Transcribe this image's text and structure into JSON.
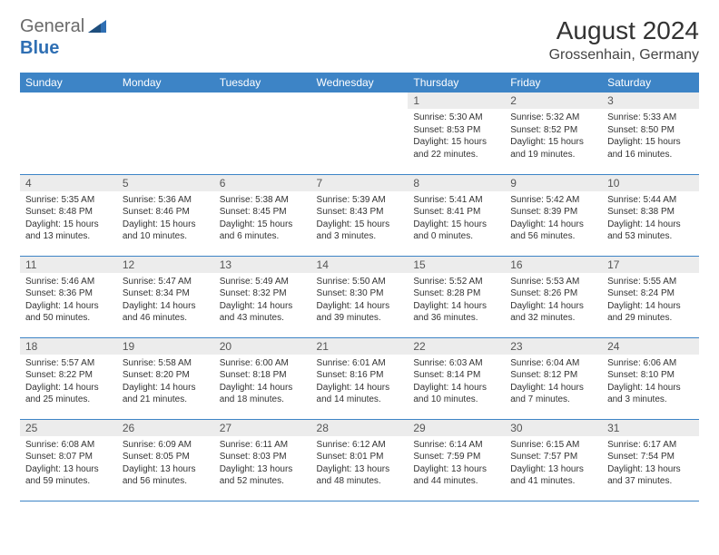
{
  "logo": {
    "general": "General",
    "blue": "Blue",
    "triangle_color": "#2f6fb3"
  },
  "title": "August 2024",
  "subtitle": "Grossenhain, Germany",
  "columns": [
    "Sunday",
    "Monday",
    "Tuesday",
    "Wednesday",
    "Thursday",
    "Friday",
    "Saturday"
  ],
  "colors": {
    "header_bg": "#3d84c6",
    "header_text": "#ffffff",
    "daynum_bg": "#ececec",
    "border": "#3d84c6",
    "text": "#333333"
  },
  "typography": {
    "title_fontsize": 28,
    "subtitle_fontsize": 16,
    "header_fontsize": 12,
    "daynum_fontsize": 12,
    "body_fontsize": 10
  },
  "weeks": [
    [
      null,
      null,
      null,
      null,
      {
        "n": "1",
        "sr": "Sunrise: 5:30 AM",
        "ss": "Sunset: 8:53 PM",
        "d1": "Daylight: 15 hours",
        "d2": "and 22 minutes."
      },
      {
        "n": "2",
        "sr": "Sunrise: 5:32 AM",
        "ss": "Sunset: 8:52 PM",
        "d1": "Daylight: 15 hours",
        "d2": "and 19 minutes."
      },
      {
        "n": "3",
        "sr": "Sunrise: 5:33 AM",
        "ss": "Sunset: 8:50 PM",
        "d1": "Daylight: 15 hours",
        "d2": "and 16 minutes."
      }
    ],
    [
      {
        "n": "4",
        "sr": "Sunrise: 5:35 AM",
        "ss": "Sunset: 8:48 PM",
        "d1": "Daylight: 15 hours",
        "d2": "and 13 minutes."
      },
      {
        "n": "5",
        "sr": "Sunrise: 5:36 AM",
        "ss": "Sunset: 8:46 PM",
        "d1": "Daylight: 15 hours",
        "d2": "and 10 minutes."
      },
      {
        "n": "6",
        "sr": "Sunrise: 5:38 AM",
        "ss": "Sunset: 8:45 PM",
        "d1": "Daylight: 15 hours",
        "d2": "and 6 minutes."
      },
      {
        "n": "7",
        "sr": "Sunrise: 5:39 AM",
        "ss": "Sunset: 8:43 PM",
        "d1": "Daylight: 15 hours",
        "d2": "and 3 minutes."
      },
      {
        "n": "8",
        "sr": "Sunrise: 5:41 AM",
        "ss": "Sunset: 8:41 PM",
        "d1": "Daylight: 15 hours",
        "d2": "and 0 minutes."
      },
      {
        "n": "9",
        "sr": "Sunrise: 5:42 AM",
        "ss": "Sunset: 8:39 PM",
        "d1": "Daylight: 14 hours",
        "d2": "and 56 minutes."
      },
      {
        "n": "10",
        "sr": "Sunrise: 5:44 AM",
        "ss": "Sunset: 8:38 PM",
        "d1": "Daylight: 14 hours",
        "d2": "and 53 minutes."
      }
    ],
    [
      {
        "n": "11",
        "sr": "Sunrise: 5:46 AM",
        "ss": "Sunset: 8:36 PM",
        "d1": "Daylight: 14 hours",
        "d2": "and 50 minutes."
      },
      {
        "n": "12",
        "sr": "Sunrise: 5:47 AM",
        "ss": "Sunset: 8:34 PM",
        "d1": "Daylight: 14 hours",
        "d2": "and 46 minutes."
      },
      {
        "n": "13",
        "sr": "Sunrise: 5:49 AM",
        "ss": "Sunset: 8:32 PM",
        "d1": "Daylight: 14 hours",
        "d2": "and 43 minutes."
      },
      {
        "n": "14",
        "sr": "Sunrise: 5:50 AM",
        "ss": "Sunset: 8:30 PM",
        "d1": "Daylight: 14 hours",
        "d2": "and 39 minutes."
      },
      {
        "n": "15",
        "sr": "Sunrise: 5:52 AM",
        "ss": "Sunset: 8:28 PM",
        "d1": "Daylight: 14 hours",
        "d2": "and 36 minutes."
      },
      {
        "n": "16",
        "sr": "Sunrise: 5:53 AM",
        "ss": "Sunset: 8:26 PM",
        "d1": "Daylight: 14 hours",
        "d2": "and 32 minutes."
      },
      {
        "n": "17",
        "sr": "Sunrise: 5:55 AM",
        "ss": "Sunset: 8:24 PM",
        "d1": "Daylight: 14 hours",
        "d2": "and 29 minutes."
      }
    ],
    [
      {
        "n": "18",
        "sr": "Sunrise: 5:57 AM",
        "ss": "Sunset: 8:22 PM",
        "d1": "Daylight: 14 hours",
        "d2": "and 25 minutes."
      },
      {
        "n": "19",
        "sr": "Sunrise: 5:58 AM",
        "ss": "Sunset: 8:20 PM",
        "d1": "Daylight: 14 hours",
        "d2": "and 21 minutes."
      },
      {
        "n": "20",
        "sr": "Sunrise: 6:00 AM",
        "ss": "Sunset: 8:18 PM",
        "d1": "Daylight: 14 hours",
        "d2": "and 18 minutes."
      },
      {
        "n": "21",
        "sr": "Sunrise: 6:01 AM",
        "ss": "Sunset: 8:16 PM",
        "d1": "Daylight: 14 hours",
        "d2": "and 14 minutes."
      },
      {
        "n": "22",
        "sr": "Sunrise: 6:03 AM",
        "ss": "Sunset: 8:14 PM",
        "d1": "Daylight: 14 hours",
        "d2": "and 10 minutes."
      },
      {
        "n": "23",
        "sr": "Sunrise: 6:04 AM",
        "ss": "Sunset: 8:12 PM",
        "d1": "Daylight: 14 hours",
        "d2": "and 7 minutes."
      },
      {
        "n": "24",
        "sr": "Sunrise: 6:06 AM",
        "ss": "Sunset: 8:10 PM",
        "d1": "Daylight: 14 hours",
        "d2": "and 3 minutes."
      }
    ],
    [
      {
        "n": "25",
        "sr": "Sunrise: 6:08 AM",
        "ss": "Sunset: 8:07 PM",
        "d1": "Daylight: 13 hours",
        "d2": "and 59 minutes."
      },
      {
        "n": "26",
        "sr": "Sunrise: 6:09 AM",
        "ss": "Sunset: 8:05 PM",
        "d1": "Daylight: 13 hours",
        "d2": "and 56 minutes."
      },
      {
        "n": "27",
        "sr": "Sunrise: 6:11 AM",
        "ss": "Sunset: 8:03 PM",
        "d1": "Daylight: 13 hours",
        "d2": "and 52 minutes."
      },
      {
        "n": "28",
        "sr": "Sunrise: 6:12 AM",
        "ss": "Sunset: 8:01 PM",
        "d1": "Daylight: 13 hours",
        "d2": "and 48 minutes."
      },
      {
        "n": "29",
        "sr": "Sunrise: 6:14 AM",
        "ss": "Sunset: 7:59 PM",
        "d1": "Daylight: 13 hours",
        "d2": "and 44 minutes."
      },
      {
        "n": "30",
        "sr": "Sunrise: 6:15 AM",
        "ss": "Sunset: 7:57 PM",
        "d1": "Daylight: 13 hours",
        "d2": "and 41 minutes."
      },
      {
        "n": "31",
        "sr": "Sunrise: 6:17 AM",
        "ss": "Sunset: 7:54 PM",
        "d1": "Daylight: 13 hours",
        "d2": "and 37 minutes."
      }
    ]
  ]
}
